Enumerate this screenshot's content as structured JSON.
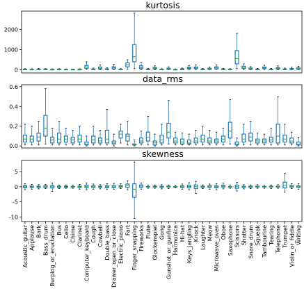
{
  "chart_data": {
    "type": "box",
    "categories": [
      "Acoustic_guitar",
      "Applause",
      "Bark",
      "Bass_drum",
      "Burping_or_eructation",
      "Bus",
      "Cello",
      "Chime",
      "Clarinet",
      "Computer_keyboard",
      "Cough",
      "Cowbell",
      "Double_bass",
      "Drawer_open_or_close",
      "Electric_piano",
      "Fart",
      "Finger_snapping",
      "Fireworks",
      "Flute",
      "Glockenspiel",
      "Gong",
      "Gunshot_or_gunfire",
      "Harmonica",
      "Hi-hat",
      "Keys_jangling",
      "Knock",
      "Laughter",
      "Meow",
      "Microwave_oven",
      "Oboe",
      "Saxophone",
      "Scissors",
      "Shatter",
      "Snare_drum",
      "Squeak",
      "Tambourine",
      "Tearing",
      "Telephone",
      "Trumpet",
      "Violin_or_fiddle",
      "Writing"
    ],
    "box_color": "#1f77b4",
    "median_color": "#2ca02c",
    "panels": [
      {
        "title": "kurtosis",
        "yticks": [
          0,
          1000,
          2000
        ],
        "ylim": [
          -150,
          2900
        ],
        "boxes": [
          [
            5,
            12,
            20,
            35,
            60
          ],
          [
            4,
            10,
            18,
            30,
            55
          ],
          [
            6,
            15,
            25,
            40,
            70
          ],
          [
            5,
            14,
            22,
            38,
            65
          ],
          [
            4,
            10,
            16,
            28,
            50
          ],
          [
            5,
            12,
            20,
            34,
            60
          ],
          [
            4,
            9,
            15,
            26,
            45
          ],
          [
            3,
            8,
            14,
            24,
            40
          ],
          [
            4,
            10,
            17,
            30,
            55
          ],
          [
            20,
            80,
            150,
            220,
            400
          ],
          [
            5,
            15,
            25,
            45,
            90
          ],
          [
            10,
            40,
            80,
            140,
            250
          ],
          [
            5,
            15,
            30,
            55,
            100
          ],
          [
            15,
            50,
            100,
            150,
            280
          ],
          [
            5,
            12,
            20,
            35,
            60
          ],
          [
            40,
            150,
            250,
            350,
            500
          ],
          [
            60,
            400,
            650,
            1250,
            2800
          ],
          [
            20,
            60,
            110,
            200,
            350
          ],
          [
            5,
            15,
            25,
            40,
            70
          ],
          [
            10,
            50,
            80,
            120,
            200
          ],
          [
            5,
            12,
            20,
            34,
            60
          ],
          [
            10,
            30,
            50,
            80,
            150
          ],
          [
            3,
            8,
            14,
            24,
            45
          ],
          [
            5,
            15,
            30,
            50,
            90
          ],
          [
            20,
            50,
            90,
            130,
            220
          ],
          [
            20,
            60,
            100,
            140,
            250
          ],
          [
            5,
            15,
            25,
            40,
            70
          ],
          [
            10,
            30,
            50,
            80,
            140
          ],
          [
            20,
            50,
            100,
            150,
            250
          ],
          [
            5,
            15,
            25,
            45,
            80
          ],
          [
            5,
            12,
            20,
            34,
            60
          ],
          [
            60,
            300,
            550,
            950,
            1800
          ],
          [
            20,
            70,
            120,
            180,
            300
          ],
          [
            10,
            30,
            55,
            90,
            160
          ],
          [
            5,
            15,
            25,
            40,
            75
          ],
          [
            20,
            60,
            100,
            140,
            230
          ],
          [
            5,
            15,
            25,
            40,
            75
          ],
          [
            10,
            40,
            70,
            110,
            200
          ],
          [
            5,
            15,
            28,
            45,
            90
          ],
          [
            5,
            20,
            40,
            70,
            130
          ],
          [
            10,
            30,
            60,
            100,
            180
          ]
        ]
      },
      {
        "title": "data_rms",
        "yticks": [
          0.0,
          0.2,
          0.4,
          0.6
        ],
        "ylim": [
          -0.02,
          0.62
        ],
        "boxes": [
          [
            0.01,
            0.04,
            0.07,
            0.11,
            0.22
          ],
          [
            0.01,
            0.04,
            0.07,
            0.1,
            0.2
          ],
          [
            0.01,
            0.05,
            0.09,
            0.13,
            0.25
          ],
          [
            0.02,
            0.1,
            0.18,
            0.31,
            0.58
          ],
          [
            0.01,
            0.03,
            0.06,
            0.09,
            0.18
          ],
          [
            0.01,
            0.03,
            0.07,
            0.13,
            0.25
          ],
          [
            0.01,
            0.04,
            0.07,
            0.1,
            0.18
          ],
          [
            0.01,
            0.03,
            0.06,
            0.09,
            0.16
          ],
          [
            0.01,
            0.04,
            0.07,
            0.11,
            0.2
          ],
          [
            0.0,
            0.01,
            0.02,
            0.04,
            0.1
          ],
          [
            0.01,
            0.03,
            0.06,
            0.1,
            0.2
          ],
          [
            0.01,
            0.03,
            0.05,
            0.08,
            0.16
          ],
          [
            0.01,
            0.03,
            0.07,
            0.16,
            0.37
          ],
          [
            0.0,
            0.02,
            0.03,
            0.05,
            0.12
          ],
          [
            0.03,
            0.08,
            0.12,
            0.15,
            0.22
          ],
          [
            0.01,
            0.05,
            0.1,
            0.12,
            0.25
          ],
          [
            0.0,
            0.01,
            0.01,
            0.02,
            0.06
          ],
          [
            0.01,
            0.03,
            0.05,
            0.08,
            0.15
          ],
          [
            0.01,
            0.05,
            0.09,
            0.14,
            0.3
          ],
          [
            0.0,
            0.01,
            0.03,
            0.05,
            0.12
          ],
          [
            0.01,
            0.03,
            0.06,
            0.11,
            0.22
          ],
          [
            0.02,
            0.08,
            0.14,
            0.23,
            0.46
          ],
          [
            0.01,
            0.03,
            0.05,
            0.08,
            0.14
          ],
          [
            0.01,
            0.02,
            0.04,
            0.07,
            0.13
          ],
          [
            0.01,
            0.02,
            0.03,
            0.06,
            0.12
          ],
          [
            0.01,
            0.03,
            0.05,
            0.08,
            0.16
          ],
          [
            0.01,
            0.04,
            0.07,
            0.11,
            0.2
          ],
          [
            0.01,
            0.03,
            0.05,
            0.08,
            0.16
          ],
          [
            0.01,
            0.03,
            0.05,
            0.07,
            0.14
          ],
          [
            0.01,
            0.04,
            0.07,
            0.1,
            0.18
          ],
          [
            0.02,
            0.08,
            0.15,
            0.24,
            0.47
          ],
          [
            0.0,
            0.01,
            0.02,
            0.04,
            0.08
          ],
          [
            0.01,
            0.04,
            0.07,
            0.12,
            0.22
          ],
          [
            0.01,
            0.05,
            0.09,
            0.13,
            0.25
          ],
          [
            0.01,
            0.03,
            0.05,
            0.07,
            0.13
          ],
          [
            0.01,
            0.03,
            0.05,
            0.07,
            0.12
          ],
          [
            0.01,
            0.04,
            0.06,
            0.09,
            0.18
          ],
          [
            0.01,
            0.03,
            0.1,
            0.22,
            0.5
          ],
          [
            0.01,
            0.04,
            0.07,
            0.11,
            0.22
          ],
          [
            0.01,
            0.03,
            0.05,
            0.08,
            0.14
          ],
          [
            0.0,
            0.01,
            0.02,
            0.04,
            0.09
          ]
        ]
      },
      {
        "title": "skewness",
        "yticks": [
          -10,
          -5,
          0,
          5
        ],
        "ylim": [
          -11.5,
          8.7
        ],
        "boxes": [
          [
            -1.0,
            -0.3,
            0.0,
            0.3,
            1.0
          ],
          [
            -0.8,
            -0.2,
            0.0,
            0.2,
            0.8
          ],
          [
            -0.7,
            -0.2,
            0.0,
            0.2,
            0.7
          ],
          [
            -0.6,
            -0.2,
            0.0,
            0.3,
            0.8
          ],
          [
            -1.5,
            -0.4,
            0.0,
            0.4,
            1.2
          ],
          [
            -0.6,
            -0.2,
            0.0,
            0.2,
            0.6
          ],
          [
            -0.5,
            -0.2,
            0.0,
            0.2,
            0.6
          ],
          [
            -0.5,
            -0.1,
            0.0,
            0.1,
            0.5
          ],
          [
            -0.8,
            -0.2,
            0.0,
            0.2,
            0.8
          ],
          [
            -1.0,
            -0.3,
            0.1,
            0.5,
            1.2
          ],
          [
            -0.8,
            -0.2,
            0.0,
            0.3,
            0.9
          ],
          [
            -0.7,
            -0.2,
            0.0,
            0.2,
            0.7
          ],
          [
            -0.9,
            -0.3,
            0.0,
            0.3,
            1.0
          ],
          [
            -0.8,
            -0.3,
            0.0,
            0.4,
            1.1
          ],
          [
            -0.6,
            -0.1,
            0.1,
            0.4,
            1.0
          ],
          [
            -1.0,
            -0.2,
            0.5,
            0.9,
            2.0
          ],
          [
            -10.5,
            -3.5,
            -0.8,
            1.0,
            8.2
          ],
          [
            -0.8,
            -0.2,
            0.2,
            0.6,
            1.2
          ],
          [
            -0.5,
            -0.1,
            0.0,
            0.1,
            0.5
          ],
          [
            -0.5,
            -0.1,
            0.0,
            0.2,
            0.6
          ],
          [
            -0.7,
            -0.2,
            0.0,
            0.2,
            0.7
          ],
          [
            -0.6,
            -0.1,
            0.0,
            0.2,
            0.6
          ],
          [
            -0.4,
            -0.1,
            0.0,
            0.1,
            0.4
          ],
          [
            -0.8,
            -0.2,
            0.0,
            0.3,
            0.9
          ],
          [
            -1.0,
            -0.3,
            0.1,
            0.5,
            1.3
          ],
          [
            -2.2,
            -0.6,
            0.0,
            0.6,
            1.8
          ],
          [
            -0.6,
            -0.2,
            0.0,
            0.2,
            0.6
          ],
          [
            -0.8,
            -0.2,
            0.0,
            0.3,
            0.9
          ],
          [
            -1.0,
            -0.3,
            0.0,
            0.3,
            1.0
          ],
          [
            -0.7,
            -0.1,
            0.2,
            0.5,
            1.2
          ],
          [
            -0.5,
            -0.1,
            0.0,
            0.1,
            0.6
          ],
          [
            -1.4,
            -0.5,
            0.0,
            0.5,
            1.5
          ],
          [
            -0.7,
            -0.2,
            0.0,
            0.2,
            0.7
          ],
          [
            -0.6,
            -0.2,
            0.0,
            0.2,
            0.6
          ],
          [
            -0.5,
            -0.1,
            0.0,
            0.2,
            0.7
          ],
          [
            -0.5,
            -0.1,
            0.0,
            0.1,
            0.5
          ],
          [
            -0.6,
            -0.1,
            0.0,
            0.2,
            0.6
          ],
          [
            -0.5,
            -0.1,
            0.0,
            0.2,
            0.7
          ],
          [
            -1.8,
            -0.4,
            0.5,
            1.5,
            4.5
          ],
          [
            -0.6,
            -0.1,
            0.1,
            0.4,
            1.0
          ],
          [
            -0.8,
            -0.2,
            0.0,
            0.3,
            1.0
          ]
        ]
      }
    ]
  }
}
